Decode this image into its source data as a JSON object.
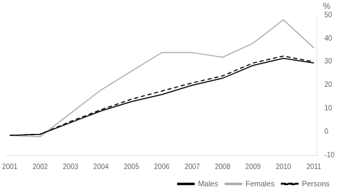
{
  "chart_data": {
    "type": "line",
    "y_label": "%",
    "x": [
      2001,
      2002,
      2003,
      2004,
      2005,
      2006,
      2007,
      2008,
      2009,
      2010,
      2011
    ],
    "series": [
      {
        "name": "Males",
        "color": "#000000",
        "line_style": "solid",
        "values": [
          -1.5,
          -1.0,
          4.0,
          9.0,
          13.0,
          16.0,
          20.0,
          23.0,
          28.5,
          31.5,
          29.5
        ]
      },
      {
        "name": "Females",
        "color": "#aaaaaa",
        "line_style": "solid",
        "values": [
          -1.5,
          -2.0,
          8.0,
          18.0,
          26.0,
          34.0,
          34.0,
          32.0,
          38.0,
          48.0,
          36.0
        ]
      },
      {
        "name": "Persons",
        "color": "#000000",
        "line_style": "dashed",
        "values": [
          -1.5,
          -1.0,
          4.5,
          9.5,
          14.0,
          17.5,
          21.0,
          24.0,
          29.5,
          32.5,
          30.0
        ]
      }
    ],
    "xlim": [
      2000.9,
      2011.1
    ],
    "xticks": [
      2001,
      2002,
      2003,
      2004,
      2005,
      2006,
      2007,
      2008,
      2009,
      2010,
      2011
    ],
    "ylim": [
      -10,
      50
    ],
    "yticks": [
      -10,
      0,
      10,
      20,
      30,
      40,
      50
    ],
    "grid": false,
    "legend": "lower right"
  }
}
